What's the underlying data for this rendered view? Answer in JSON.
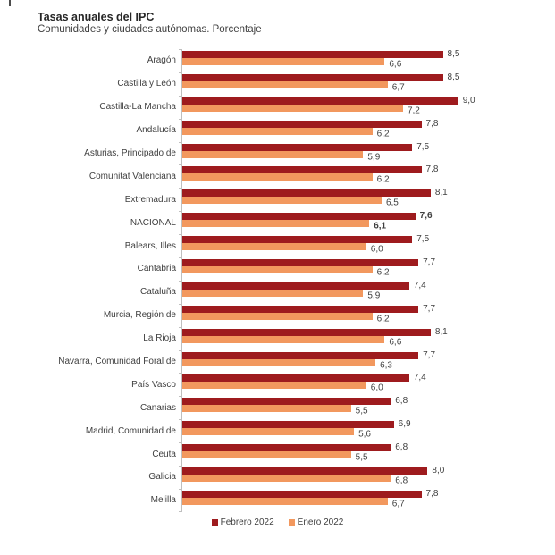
{
  "header": {
    "title": "Tasas anuales del IPC",
    "subtitle": "Comunidades y ciudades autónomas. Porcentaje"
  },
  "colors": {
    "febrero": "#9e1b1e",
    "enero": "#f2985e",
    "axis": "#bfbfbf",
    "text": "#404040"
  },
  "chart_data": {
    "type": "bar",
    "orientation": "horizontal",
    "title": "Tasas anuales del IPC",
    "subtitle": "Comunidades y ciudades autónomas. Porcentaje",
    "xlim": [
      0,
      9.0
    ],
    "grid": false,
    "legend_position": "bottom",
    "value_labels_decimal": "comma",
    "emphasized_category": "NACIONAL",
    "categories": [
      "Aragón",
      "Castilla y León",
      "Castilla-La Mancha",
      "Andalucía",
      "Asturias, Principado de",
      "Comunitat Valenciana",
      "Extremadura",
      "NACIONAL",
      "Balears, Illes",
      "Cantabria",
      "Cataluña",
      "Murcia, Región de",
      "La Rioja",
      "Navarra, Comunidad Foral de",
      "País Vasco",
      "Canarias",
      "Madrid, Comunidad de",
      "Ceuta",
      "Galicia",
      "Melilla"
    ],
    "series": [
      {
        "name": "Febrero 2022",
        "color": "#9e1b1e",
        "values": [
          8.5,
          8.5,
          9.0,
          7.8,
          7.5,
          7.8,
          8.1,
          7.6,
          7.5,
          7.7,
          7.4,
          7.7,
          8.1,
          7.7,
          7.4,
          6.8,
          6.9,
          6.8,
          8.0,
          7.8
        ],
        "labels": [
          "8,5",
          "8,5",
          "9,0",
          "7,8",
          "7,5",
          "7,8",
          "8,1",
          "7,6",
          "7,5",
          "7,7",
          "7,4",
          "7,7",
          "8,1",
          "7,7",
          "7,4",
          "6,8",
          "6,9",
          "6,8",
          "8,0",
          "7,8"
        ]
      },
      {
        "name": "Enero 2022",
        "color": "#f2985e",
        "values": [
          6.6,
          6.7,
          7.2,
          6.2,
          5.9,
          6.2,
          6.5,
          6.1,
          6.0,
          6.2,
          5.9,
          6.2,
          6.6,
          6.3,
          6.0,
          5.5,
          5.6,
          5.5,
          6.8,
          6.7
        ],
        "labels": [
          "6,6",
          "6,7",
          "7,2",
          "6,2",
          "5,9",
          "6,2",
          "6,5",
          "6,1",
          "6,0",
          "6,2",
          "5,9",
          "6,2",
          "6,6",
          "6,3",
          "6,0",
          "5,5",
          "5,6",
          "5,5",
          "6,8",
          "6,7"
        ]
      }
    ]
  }
}
